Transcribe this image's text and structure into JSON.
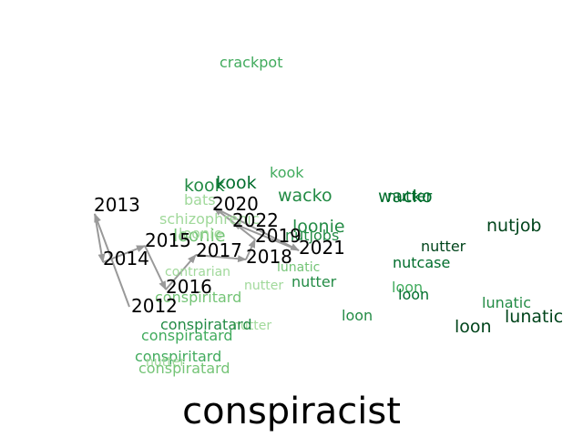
{
  "title": "conspiracist",
  "palette": {
    "darkest": "#00441b",
    "dark": "#006d2c",
    "mid_dark": "#238b45",
    "mid": "#41ab5d",
    "light": "#74c476",
    "lighter": "#a1d99b",
    "lightest": "#c7e9c0",
    "arrow": "#999999"
  },
  "years": [
    "2012",
    "2013",
    "2014",
    "2015",
    "2016",
    "2017",
    "2018",
    "2019",
    "2020",
    "2021",
    "2022"
  ],
  "trajectory_order": [
    "2012",
    "2013",
    "2014",
    "2015",
    "2016",
    "2017",
    "2018",
    "2019",
    "2020",
    "2021",
    "2022"
  ],
  "neighbors": [
    {
      "word": "crackpot",
      "color": "mid",
      "size": 16
    },
    {
      "word": "kook",
      "color": "mid",
      "size": 16
    },
    {
      "word": "kook",
      "color": "mid_dark",
      "size": 19
    },
    {
      "word": "kook",
      "color": "dark",
      "size": 19
    },
    {
      "word": "bats",
      "color": "lighter",
      "size": 16
    },
    {
      "word": "wacko",
      "color": "mid_dark",
      "size": 19
    },
    {
      "word": "wacko",
      "color": "dark",
      "size": 19
    },
    {
      "word": "nutter",
      "color": "dark",
      "size": 16
    },
    {
      "word": "schizophrenic",
      "color": "lighter",
      "size": 16
    },
    {
      "word": "loonie",
      "color": "mid_dark",
      "size": 19
    },
    {
      "word": "loonie",
      "color": "light",
      "size": 19
    },
    {
      "word": "loonie",
      "color": "lighter",
      "size": 16
    },
    {
      "word": "nutjobs",
      "color": "mid_dark",
      "size": 16
    },
    {
      "word": "nutjob",
      "color": "darkest",
      "size": 19
    },
    {
      "word": "nutter",
      "color": "darkest",
      "size": 16
    },
    {
      "word": "nutcase",
      "color": "dark",
      "size": 16
    },
    {
      "word": "lunatic",
      "color": "light",
      "size": 14
    },
    {
      "word": "nutter",
      "color": "lighter",
      "size": 14
    },
    {
      "word": "nutter",
      "color": "mid_dark",
      "size": 16
    },
    {
      "word": "loon",
      "color": "mid",
      "size": 16
    },
    {
      "word": "contrarian",
      "color": "lighter",
      "size": 14
    },
    {
      "word": "conspiritard",
      "color": "light",
      "size": 16
    },
    {
      "word": "loon",
      "color": "dark",
      "size": 16
    },
    {
      "word": "loon",
      "color": "mid_dark",
      "size": 16
    },
    {
      "word": "lunatic",
      "color": "mid_dark",
      "size": 16
    },
    {
      "word": "lunatic",
      "color": "darkest",
      "size": 19
    },
    {
      "word": "loon",
      "color": "darkest",
      "size": 19
    },
    {
      "word": "conspiratard",
      "color": "mid",
      "size": 16
    },
    {
      "word": "nutter",
      "color": "lighter",
      "size": 14
    },
    {
      "word": "conspiratard",
      "color": "mid_dark",
      "size": 16
    },
    {
      "word": "conspiritard",
      "color": "mid",
      "size": 16
    },
    {
      "word": "nutter",
      "color": "lighter",
      "size": 14
    },
    {
      "word": "conspiratard",
      "color": "light",
      "size": 16
    }
  ]
}
